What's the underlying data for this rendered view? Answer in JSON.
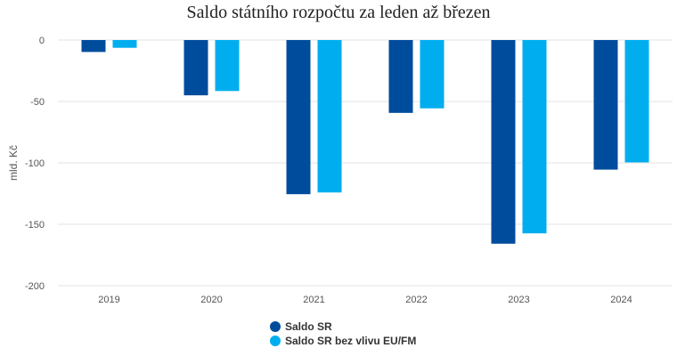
{
  "chart_data": {
    "type": "bar",
    "title": "Saldo státního rozpočtu za leden až březen",
    "ylabel": "mld. Kč",
    "xlabel": "",
    "categories": [
      "2019",
      "2020",
      "2021",
      "2022",
      "2023",
      "2024"
    ],
    "series": [
      {
        "name": "Saldo SR",
        "color": "#004C9C",
        "values": [
          -9.7,
          -45.0,
          -125.5,
          -59.3,
          -165.8,
          -105.5
        ]
      },
      {
        "name": "Saldo SR bez vlivu EU/FM",
        "color": "#00AEEF",
        "values": [
          -6.3,
          -41.5,
          -124.1,
          -55.6,
          -157.4,
          -99.6
        ]
      }
    ],
    "ylim": [
      -200,
      0
    ],
    "yticks": [
      0,
      -50,
      -100,
      -150,
      -200
    ],
    "grid": true,
    "legend_position": "bottom"
  }
}
